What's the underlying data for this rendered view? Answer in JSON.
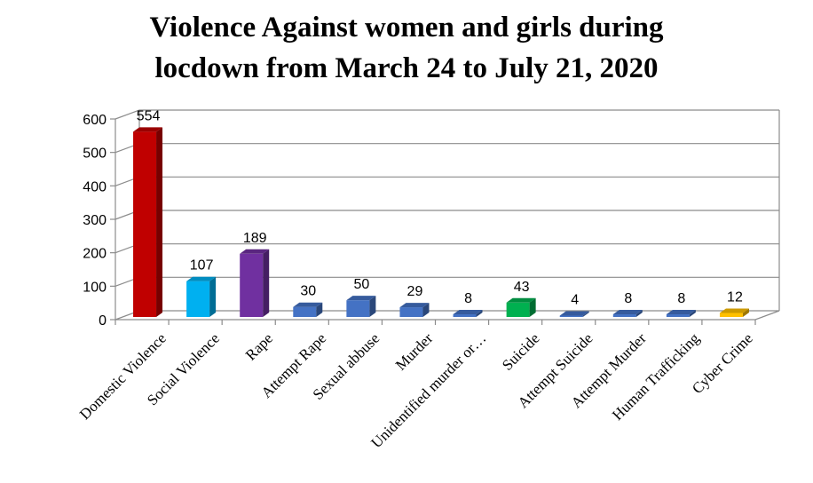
{
  "chart_data": {
    "type": "bar",
    "title_lines": [
      "Violence Against women and girls during",
      "locdown from March 24 to July 21, 2020"
    ],
    "categories": [
      "Domestic Violence",
      "Social Violence",
      "Rape",
      "Attempt Rape",
      "Sexual abbuse",
      "Murder",
      "Unidentified murder or…",
      "Suicide",
      "Attempt Suicide",
      "Attempt Murder",
      "Human Trafficking",
      "Cyber Crime"
    ],
    "values": [
      554,
      107,
      189,
      30,
      50,
      29,
      8,
      43,
      4,
      8,
      8,
      12
    ],
    "bar_colors": [
      "#c00000",
      "#00b0f0",
      "#7030a0",
      "#4472c4",
      "#4472c4",
      "#4472c4",
      "#4472c4",
      "#00b050",
      "#4472c4",
      "#4472c4",
      "#4472c4",
      "#ffc000"
    ],
    "yticks": [
      0,
      100,
      200,
      300,
      400,
      500,
      600
    ],
    "ylim": [
      0,
      600
    ],
    "grid": true,
    "data_labels": true
  }
}
